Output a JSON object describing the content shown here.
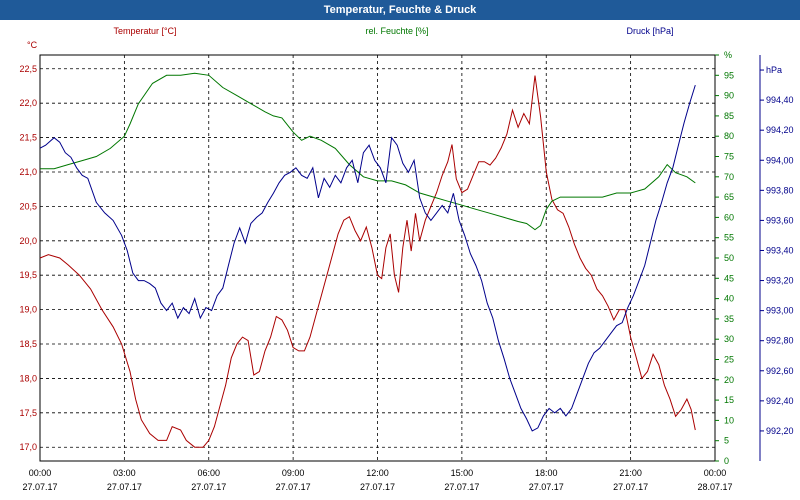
{
  "title": "Temperatur, Feuchte & Druck",
  "chart_data": {
    "type": "line",
    "title": "Temperatur, Feuchte & Druck",
    "x_ticks": [
      {
        "time": "00:00",
        "date": "27.07.17"
      },
      {
        "time": "03:00",
        "date": "27.07.17"
      },
      {
        "time": "06:00",
        "date": "27.07.17"
      },
      {
        "time": "09:00",
        "date": "27.07.17"
      },
      {
        "time": "12:00",
        "date": "27.07.17"
      },
      {
        "time": "15:00",
        "date": "27.07.17"
      },
      {
        "time": "18:00",
        "date": "27.07.17"
      },
      {
        "time": "21:00",
        "date": "27.07.17"
      },
      {
        "time": "00:00",
        "date": "28.07.17"
      }
    ],
    "x_range_hours": [
      0,
      24
    ],
    "grid": true,
    "axes": {
      "temperature": {
        "label": "Temperatur [°C]",
        "unit": "°C",
        "color": "#aa0000",
        "side": "left",
        "range": [
          16.8,
          22.7
        ],
        "ticks": [
          "17,0",
          "17,5",
          "18,0",
          "18,5",
          "19,0",
          "19,5",
          "20,0",
          "20,5",
          "21,0",
          "21,5",
          "22,0",
          "22,5"
        ]
      },
      "humidity": {
        "label": "rel. Feuchte [%]",
        "unit": "%",
        "color": "#007700",
        "side": "right-inner",
        "range": [
          0,
          100
        ],
        "ticks": [
          "0",
          "5",
          "10",
          "15",
          "20",
          "25",
          "30",
          "35",
          "40",
          "45",
          "50",
          "55",
          "60",
          "65",
          "70",
          "75",
          "80",
          "85",
          "90",
          "95",
          "%"
        ]
      },
      "pressure": {
        "label": "Druck [hPa]",
        "unit": "hPa",
        "color": "#00008b",
        "side": "right-outer",
        "range": [
          992.0,
          994.7
        ],
        "ticks": [
          "992,20",
          "992,40",
          "992,60",
          "992,80",
          "993,00",
          "993,20",
          "993,40",
          "993,60",
          "993,80",
          "994,00",
          "994,20",
          "994,40",
          "hPa"
        ]
      }
    },
    "series": [
      {
        "name": "Temperatur [°C]",
        "axis": "temperature",
        "color": "#aa0000",
        "points": [
          [
            0,
            19.75
          ],
          [
            0.3,
            19.8
          ],
          [
            0.7,
            19.75
          ],
          [
            1,
            19.65
          ],
          [
            1.4,
            19.5
          ],
          [
            1.8,
            19.3
          ],
          [
            2.2,
            19.0
          ],
          [
            2.6,
            18.75
          ],
          [
            2.9,
            18.5
          ],
          [
            3.2,
            18.1
          ],
          [
            3.4,
            17.7
          ],
          [
            3.6,
            17.4
          ],
          [
            3.9,
            17.2
          ],
          [
            4.2,
            17.1
          ],
          [
            4.5,
            17.1
          ],
          [
            4.7,
            17.3
          ],
          [
            5.0,
            17.25
          ],
          [
            5.2,
            17.1
          ],
          [
            5.5,
            17.0
          ],
          [
            5.8,
            17.0
          ],
          [
            6.0,
            17.1
          ],
          [
            6.2,
            17.3
          ],
          [
            6.4,
            17.6
          ],
          [
            6.6,
            17.9
          ],
          [
            6.8,
            18.3
          ],
          [
            7.0,
            18.5
          ],
          [
            7.2,
            18.6
          ],
          [
            7.4,
            18.55
          ],
          [
            7.6,
            18.05
          ],
          [
            7.8,
            18.1
          ],
          [
            8.0,
            18.4
          ],
          [
            8.2,
            18.6
          ],
          [
            8.4,
            18.9
          ],
          [
            8.6,
            18.85
          ],
          [
            8.8,
            18.7
          ],
          [
            9.0,
            18.45
          ],
          [
            9.2,
            18.4
          ],
          [
            9.4,
            18.4
          ],
          [
            9.6,
            18.6
          ],
          [
            9.8,
            18.9
          ],
          [
            10.0,
            19.2
          ],
          [
            10.2,
            19.5
          ],
          [
            10.4,
            19.8
          ],
          [
            10.6,
            20.1
          ],
          [
            10.8,
            20.3
          ],
          [
            11.0,
            20.35
          ],
          [
            11.2,
            20.15
          ],
          [
            11.4,
            20.0
          ],
          [
            11.6,
            20.2
          ],
          [
            11.8,
            19.9
          ],
          [
            12.0,
            19.5
          ],
          [
            12.15,
            19.45
          ],
          [
            12.3,
            19.9
          ],
          [
            12.45,
            20.1
          ],
          [
            12.6,
            19.5
          ],
          [
            12.75,
            19.25
          ],
          [
            12.9,
            19.9
          ],
          [
            13.05,
            20.3
          ],
          [
            13.2,
            19.85
          ],
          [
            13.35,
            20.4
          ],
          [
            13.5,
            20.0
          ],
          [
            13.7,
            20.3
          ],
          [
            13.9,
            20.5
          ],
          [
            14.1,
            20.7
          ],
          [
            14.3,
            20.95
          ],
          [
            14.5,
            21.15
          ],
          [
            14.65,
            21.4
          ],
          [
            14.8,
            20.9
          ],
          [
            15.0,
            20.7
          ],
          [
            15.2,
            20.75
          ],
          [
            15.4,
            20.95
          ],
          [
            15.6,
            21.15
          ],
          [
            15.8,
            21.15
          ],
          [
            16.0,
            21.1
          ],
          [
            16.2,
            21.2
          ],
          [
            16.4,
            21.35
          ],
          [
            16.6,
            21.55
          ],
          [
            16.8,
            21.9
          ],
          [
            17.0,
            21.65
          ],
          [
            17.2,
            21.85
          ],
          [
            17.4,
            21.7
          ],
          [
            17.6,
            22.4
          ],
          [
            17.8,
            21.8
          ],
          [
            18.0,
            21.0
          ],
          [
            18.2,
            20.6
          ],
          [
            18.4,
            20.45
          ],
          [
            18.6,
            20.4
          ],
          [
            18.8,
            20.2
          ],
          [
            19.0,
            19.95
          ],
          [
            19.2,
            19.75
          ],
          [
            19.4,
            19.6
          ],
          [
            19.6,
            19.5
          ],
          [
            19.8,
            19.3
          ],
          [
            20.0,
            19.2
          ],
          [
            20.2,
            19.05
          ],
          [
            20.4,
            18.85
          ],
          [
            20.6,
            19.0
          ],
          [
            20.8,
            19.0
          ],
          [
            21.0,
            18.6
          ],
          [
            21.2,
            18.3
          ],
          [
            21.4,
            18.0
          ],
          [
            21.6,
            18.1
          ],
          [
            21.8,
            18.35
          ],
          [
            22.0,
            18.2
          ],
          [
            22.2,
            17.9
          ],
          [
            22.4,
            17.7
          ],
          [
            22.6,
            17.45
          ],
          [
            22.8,
            17.55
          ],
          [
            23.0,
            17.7
          ],
          [
            23.15,
            17.55
          ],
          [
            23.3,
            17.25
          ]
        ]
      },
      {
        "name": "rel. Feuchte [%]",
        "axis": "humidity",
        "color": "#007700",
        "points": [
          [
            0,
            72
          ],
          [
            0.5,
            72
          ],
          [
            1,
            73
          ],
          [
            1.5,
            74
          ],
          [
            2,
            75
          ],
          [
            2.5,
            77
          ],
          [
            3,
            80
          ],
          [
            3.2,
            83
          ],
          [
            3.5,
            88
          ],
          [
            4,
            93
          ],
          [
            4.5,
            95
          ],
          [
            5,
            95
          ],
          [
            5.5,
            95.5
          ],
          [
            6,
            95
          ],
          [
            6.5,
            92
          ],
          [
            7,
            90
          ],
          [
            7.5,
            88
          ],
          [
            8,
            86
          ],
          [
            8.3,
            85
          ],
          [
            8.6,
            84.5
          ],
          [
            9,
            81
          ],
          [
            9.3,
            79
          ],
          [
            9.6,
            80
          ],
          [
            10,
            79
          ],
          [
            10.5,
            77
          ],
          [
            11,
            73
          ],
          [
            11.5,
            70
          ],
          [
            12,
            69
          ],
          [
            12.5,
            69
          ],
          [
            13,
            68
          ],
          [
            13.5,
            66
          ],
          [
            14,
            65
          ],
          [
            14.5,
            64
          ],
          [
            15,
            63
          ],
          [
            15.5,
            62
          ],
          [
            16,
            61
          ],
          [
            16.5,
            60
          ],
          [
            17,
            59
          ],
          [
            17.3,
            58.5
          ],
          [
            17.6,
            57
          ],
          [
            17.8,
            58
          ],
          [
            18,
            62
          ],
          [
            18.2,
            64
          ],
          [
            18.5,
            65
          ],
          [
            19,
            65
          ],
          [
            19.5,
            65
          ],
          [
            20,
            65
          ],
          [
            20.5,
            66
          ],
          [
            21,
            66
          ],
          [
            21.5,
            67
          ],
          [
            22,
            70
          ],
          [
            22.3,
            73
          ],
          [
            22.6,
            71
          ],
          [
            23,
            70
          ],
          [
            23.3,
            68.5
          ]
        ]
      },
      {
        "name": "Druck [hPa]",
        "axis": "pressure",
        "color": "#00008b",
        "points": [
          [
            0,
            994.08
          ],
          [
            0.2,
            994.1
          ],
          [
            0.5,
            994.15
          ],
          [
            0.7,
            994.12
          ],
          [
            0.9,
            994.05
          ],
          [
            1.1,
            994.02
          ],
          [
            1.3,
            993.95
          ],
          [
            1.5,
            993.9
          ],
          [
            1.7,
            993.88
          ],
          [
            2.0,
            993.72
          ],
          [
            2.3,
            993.65
          ],
          [
            2.6,
            993.6
          ],
          [
            2.9,
            993.5
          ],
          [
            3.1,
            993.4
          ],
          [
            3.3,
            993.25
          ],
          [
            3.5,
            993.2
          ],
          [
            3.7,
            993.2
          ],
          [
            3.9,
            993.18
          ],
          [
            4.1,
            993.15
          ],
          [
            4.3,
            993.05
          ],
          [
            4.5,
            993.0
          ],
          [
            4.7,
            993.05
          ],
          [
            4.9,
            992.95
          ],
          [
            5.1,
            993.02
          ],
          [
            5.3,
            992.98
          ],
          [
            5.5,
            993.08
          ],
          [
            5.7,
            992.95
          ],
          [
            5.9,
            993.02
          ],
          [
            6.1,
            993.0
          ],
          [
            6.3,
            993.1
          ],
          [
            6.5,
            993.15
          ],
          [
            6.7,
            993.3
          ],
          [
            6.9,
            993.45
          ],
          [
            7.1,
            993.55
          ],
          [
            7.3,
            993.45
          ],
          [
            7.5,
            993.58
          ],
          [
            7.7,
            993.62
          ],
          [
            7.9,
            993.65
          ],
          [
            8.1,
            993.72
          ],
          [
            8.3,
            993.78
          ],
          [
            8.5,
            993.85
          ],
          [
            8.7,
            993.9
          ],
          [
            8.9,
            993.92
          ],
          [
            9.1,
            993.95
          ],
          [
            9.3,
            993.9
          ],
          [
            9.5,
            993.88
          ],
          [
            9.7,
            993.95
          ],
          [
            9.9,
            993.75
          ],
          [
            10.1,
            993.88
          ],
          [
            10.3,
            993.82
          ],
          [
            10.5,
            993.9
          ],
          [
            10.7,
            993.85
          ],
          [
            10.9,
            993.95
          ],
          [
            11.1,
            994.0
          ],
          [
            11.3,
            993.85
          ],
          [
            11.5,
            994.05
          ],
          [
            11.7,
            994.1
          ],
          [
            11.9,
            994.0
          ],
          [
            12.1,
            993.95
          ],
          [
            12.3,
            993.85
          ],
          [
            12.5,
            994.15
          ],
          [
            12.7,
            994.1
          ],
          [
            12.9,
            993.98
          ],
          [
            13.1,
            993.92
          ],
          [
            13.3,
            994.0
          ],
          [
            13.5,
            993.75
          ],
          [
            13.7,
            993.65
          ],
          [
            13.9,
            993.6
          ],
          [
            14.1,
            993.65
          ],
          [
            14.3,
            993.7
          ],
          [
            14.5,
            993.65
          ],
          [
            14.7,
            993.78
          ],
          [
            14.9,
            993.6
          ],
          [
            15.1,
            993.5
          ],
          [
            15.3,
            993.38
          ],
          [
            15.5,
            993.3
          ],
          [
            15.7,
            993.2
          ],
          [
            15.9,
            993.05
          ],
          [
            16.1,
            992.95
          ],
          [
            16.3,
            992.8
          ],
          [
            16.5,
            992.68
          ],
          [
            16.7,
            992.55
          ],
          [
            16.9,
            992.45
          ],
          [
            17.1,
            992.35
          ],
          [
            17.3,
            992.28
          ],
          [
            17.5,
            992.2
          ],
          [
            17.7,
            992.22
          ],
          [
            17.9,
            992.3
          ],
          [
            18.1,
            992.35
          ],
          [
            18.3,
            992.32
          ],
          [
            18.5,
            992.35
          ],
          [
            18.7,
            992.3
          ],
          [
            18.9,
            992.35
          ],
          [
            19.1,
            992.45
          ],
          [
            19.3,
            992.55
          ],
          [
            19.5,
            992.65
          ],
          [
            19.7,
            992.72
          ],
          [
            19.9,
            992.75
          ],
          [
            20.1,
            992.8
          ],
          [
            20.3,
            992.85
          ],
          [
            20.5,
            992.9
          ],
          [
            20.7,
            992.92
          ],
          [
            20.9,
            993.02
          ],
          [
            21.1,
            993.1
          ],
          [
            21.3,
            993.2
          ],
          [
            21.5,
            993.3
          ],
          [
            21.7,
            993.45
          ],
          [
            21.9,
            993.6
          ],
          [
            22.1,
            993.72
          ],
          [
            22.3,
            993.85
          ],
          [
            22.5,
            993.95
          ],
          [
            22.7,
            994.1
          ],
          [
            22.9,
            994.25
          ],
          [
            23.1,
            994.38
          ],
          [
            23.3,
            994.5
          ]
        ]
      }
    ]
  }
}
